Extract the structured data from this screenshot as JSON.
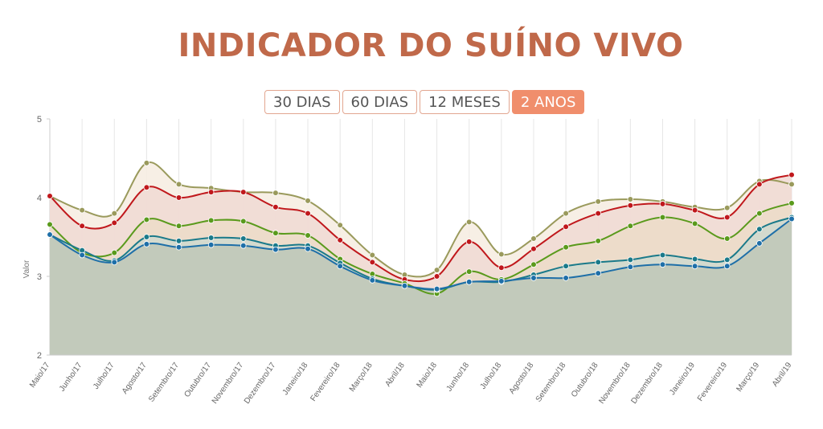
{
  "title": "INDICADOR DO SUÍNO VIVO",
  "tabs": [
    {
      "label": "30 DIAS",
      "active": false
    },
    {
      "label": "60 DIAS",
      "active": false
    },
    {
      "label": "12 MESES",
      "active": false
    },
    {
      "label": "2 ANOS",
      "active": true
    }
  ],
  "colors": {
    "title": "#c0694a",
    "tab_active": "#f08e6c",
    "tab_border": "#e2a690"
  },
  "chart_data": {
    "type": "line",
    "title": "",
    "xlabel": "",
    "ylabel": "Valor",
    "ylim": [
      2,
      5
    ],
    "yticks": [
      "2",
      "3",
      "4",
      "5"
    ],
    "grid": "vertical",
    "legend": "none",
    "categories": [
      "Maio/17",
      "Junho/17",
      "Julho/17",
      "Agosto/17",
      "Setembro/17",
      "Outubro/17",
      "Novembro/17",
      "Dezembro/17",
      "Janeiro/18",
      "Fevereiro/18",
      "Março/18",
      "Abril/18",
      "Maio/18",
      "Junho/18",
      "Julho/18",
      "Agosto/18",
      "Setembro/18",
      "Outubro/18",
      "Novembro/18",
      "Dezembro/18",
      "Janeiro/19",
      "Fevereiro/19",
      "Março/19",
      "Abril/19"
    ],
    "series": [
      {
        "color": "#9a9a5c",
        "values": [
          4.02,
          3.84,
          3.8,
          4.44,
          4.17,
          4.12,
          4.07,
          4.06,
          3.96,
          3.65,
          3.27,
          3.02,
          3.08,
          3.69,
          3.28,
          3.48,
          3.8,
          3.95,
          3.98,
          3.95,
          3.88,
          3.87,
          4.21,
          4.17
        ]
      },
      {
        "color": "#c0181c",
        "values": [
          4.02,
          3.64,
          3.68,
          4.13,
          4.0,
          4.07,
          4.07,
          3.88,
          3.8,
          3.46,
          3.18,
          2.96,
          3.0,
          3.44,
          3.11,
          3.35,
          3.63,
          3.8,
          3.9,
          3.92,
          3.84,
          3.75,
          4.17,
          4.29
        ]
      },
      {
        "color": "#5a9a1c",
        "values": [
          3.66,
          3.3,
          3.3,
          3.72,
          3.64,
          3.71,
          3.7,
          3.55,
          3.52,
          3.22,
          3.03,
          2.91,
          2.78,
          3.06,
          2.96,
          3.15,
          3.37,
          3.45,
          3.64,
          3.75,
          3.67,
          3.48,
          3.8,
          3.93
        ]
      },
      {
        "color": "#1a7a8a",
        "values": [
          3.53,
          3.33,
          3.2,
          3.5,
          3.45,
          3.49,
          3.48,
          3.39,
          3.39,
          3.17,
          2.97,
          2.88,
          2.83,
          2.93,
          2.93,
          3.02,
          3.13,
          3.18,
          3.21,
          3.27,
          3.22,
          3.21,
          3.6,
          3.75
        ]
      },
      {
        "color": "#1e6fa8",
        "values": [
          3.53,
          3.27,
          3.18,
          3.41,
          3.37,
          3.4,
          3.39,
          3.34,
          3.35,
          3.13,
          2.95,
          2.88,
          2.84,
          2.93,
          2.94,
          2.98,
          2.98,
          3.04,
          3.12,
          3.15,
          3.13,
          3.13,
          3.42,
          3.73
        ]
      }
    ]
  }
}
